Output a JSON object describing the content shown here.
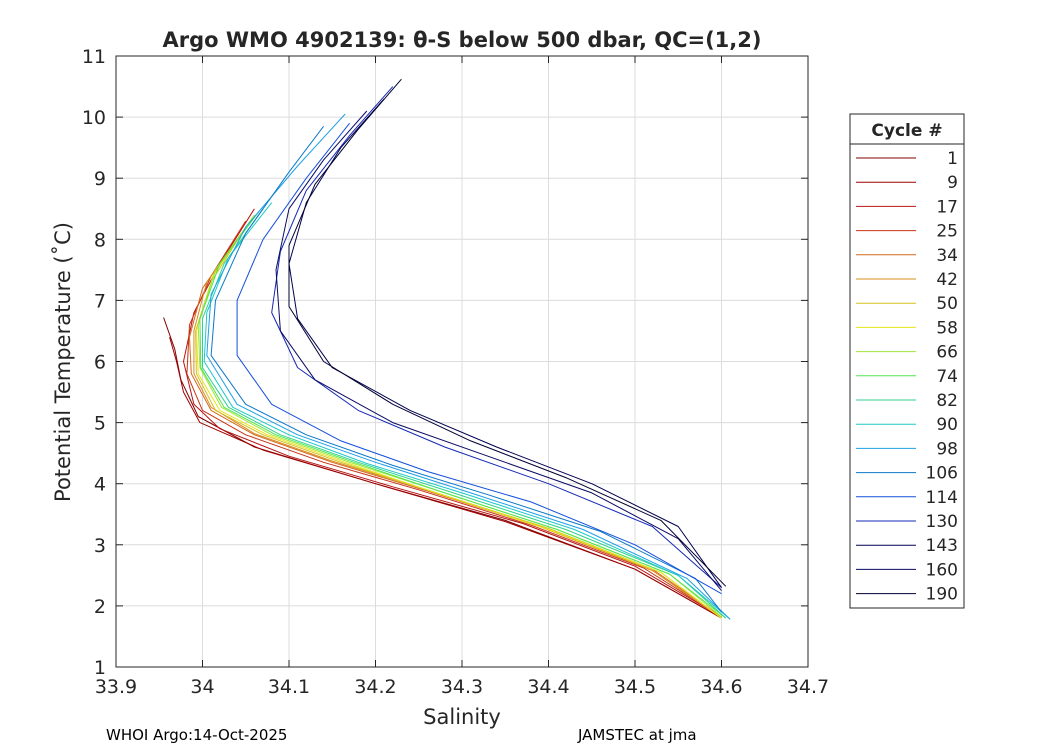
{
  "chart_data": {
    "type": "line",
    "title": "Argo WMO 4902139: θ-S below 500 dbar,  QC=(1,2)",
    "xlabel": "Salinity",
    "ylabel": "Potential Temperature (˚C)",
    "xlim": [
      33.9,
      34.7
    ],
    "ylim": [
      1,
      11
    ],
    "xticks": [
      "33.9",
      "34",
      "34.1",
      "34.2",
      "34.3",
      "34.4",
      "34.5",
      "34.6",
      "34.7"
    ],
    "yticks": [
      "1",
      "2",
      "3",
      "4",
      "5",
      "6",
      "7",
      "8",
      "9",
      "10",
      "11"
    ],
    "grid": true,
    "legend_title": "Cycle #",
    "legend_position": "outside-right",
    "series": [
      {
        "name": "1",
        "color": "#800000",
        "points": [
          [
            33.955,
            6.72
          ],
          [
            33.968,
            6.2
          ],
          [
            33.975,
            5.7
          ],
          [
            33.995,
            5.1
          ],
          [
            34.06,
            4.6
          ],
          [
            34.2,
            4.0
          ],
          [
            34.35,
            3.4
          ],
          [
            34.5,
            2.6
          ],
          [
            34.6,
            1.8
          ]
        ]
      },
      {
        "name": "9",
        "color": "#a00000",
        "points": [
          [
            33.962,
            6.4
          ],
          [
            33.97,
            6.0
          ],
          [
            33.978,
            5.5
          ],
          [
            33.997,
            5.0
          ],
          [
            34.07,
            4.55
          ],
          [
            34.2,
            4.0
          ],
          [
            34.35,
            3.38
          ],
          [
            34.5,
            2.6
          ],
          [
            34.6,
            1.8
          ]
        ]
      },
      {
        "name": "17",
        "color": "#b81414",
        "points": [
          [
            34.06,
            8.5
          ],
          [
            34.02,
            7.6
          ],
          [
            33.99,
            6.8
          ],
          [
            33.978,
            6.0
          ],
          [
            33.99,
            5.3
          ],
          [
            34.02,
            4.9
          ],
          [
            34.1,
            4.45
          ],
          [
            34.22,
            3.95
          ],
          [
            34.37,
            3.35
          ],
          [
            34.5,
            2.65
          ],
          [
            34.6,
            1.82
          ]
        ]
      },
      {
        "name": "25",
        "color": "#c83214",
        "points": [
          [
            34.05,
            8.3
          ],
          [
            34.01,
            7.4
          ],
          [
            33.985,
            6.6
          ],
          [
            33.982,
            5.8
          ],
          [
            34.0,
            5.2
          ],
          [
            34.05,
            4.8
          ],
          [
            34.14,
            4.35
          ],
          [
            34.25,
            3.9
          ],
          [
            34.38,
            3.32
          ],
          [
            34.51,
            2.62
          ],
          [
            34.6,
            1.82
          ]
        ]
      },
      {
        "name": "34",
        "color": "#d2691e",
        "points": [
          [
            34.04,
            8.0
          ],
          [
            34.0,
            7.2
          ],
          [
            33.985,
            6.4
          ],
          [
            33.987,
            5.8
          ],
          [
            34.01,
            5.2
          ],
          [
            34.06,
            4.8
          ],
          [
            34.15,
            4.35
          ],
          [
            34.26,
            3.88
          ],
          [
            34.39,
            3.3
          ],
          [
            34.52,
            2.6
          ],
          [
            34.6,
            1.82
          ]
        ]
      },
      {
        "name": "42",
        "color": "#d98c1a",
        "points": [
          [
            34.045,
            8.1
          ],
          [
            34.005,
            7.3
          ],
          [
            33.99,
            6.5
          ],
          [
            33.99,
            5.8
          ],
          [
            34.01,
            5.25
          ],
          [
            34.06,
            4.82
          ],
          [
            34.15,
            4.37
          ],
          [
            34.26,
            3.9
          ],
          [
            34.39,
            3.3
          ],
          [
            34.52,
            2.58
          ],
          [
            34.6,
            1.8
          ]
        ]
      },
      {
        "name": "50",
        "color": "#d4c21e",
        "points": [
          [
            34.05,
            8.2
          ],
          [
            34.01,
            7.3
          ],
          [
            33.992,
            6.5
          ],
          [
            33.993,
            5.8
          ],
          [
            34.015,
            5.2
          ],
          [
            34.07,
            4.8
          ],
          [
            34.16,
            4.35
          ],
          [
            34.27,
            3.85
          ],
          [
            34.4,
            3.27
          ],
          [
            34.53,
            2.55
          ],
          [
            34.6,
            1.8
          ]
        ]
      },
      {
        "name": "58",
        "color": "#e6e61e",
        "points": [
          [
            34.055,
            8.3
          ],
          [
            34.012,
            7.4
          ],
          [
            33.993,
            6.5
          ],
          [
            33.995,
            5.8
          ],
          [
            34.02,
            5.2
          ],
          [
            34.075,
            4.8
          ],
          [
            34.165,
            4.35
          ],
          [
            34.27,
            3.85
          ],
          [
            34.4,
            3.25
          ],
          [
            34.53,
            2.55
          ],
          [
            34.6,
            1.8
          ]
        ]
      },
      {
        "name": "66",
        "color": "#a0e632",
        "points": [
          [
            34.06,
            8.4
          ],
          [
            34.015,
            7.5
          ],
          [
            33.995,
            6.6
          ],
          [
            33.997,
            5.9
          ],
          [
            34.022,
            5.25
          ],
          [
            34.08,
            4.8
          ],
          [
            34.17,
            4.35
          ],
          [
            34.28,
            3.85
          ],
          [
            34.41,
            3.25
          ],
          [
            34.54,
            2.52
          ],
          [
            34.6,
            1.82
          ]
        ]
      },
      {
        "name": "74",
        "color": "#50e650",
        "points": [
          [
            34.065,
            8.45
          ],
          [
            34.02,
            7.6
          ],
          [
            33.997,
            6.7
          ],
          [
            33.998,
            5.9
          ],
          [
            34.025,
            5.25
          ],
          [
            34.085,
            4.8
          ],
          [
            34.175,
            4.35
          ],
          [
            34.28,
            3.85
          ],
          [
            34.41,
            3.25
          ],
          [
            34.54,
            2.52
          ],
          [
            34.605,
            1.8
          ]
        ]
      },
      {
        "name": "82",
        "color": "#32d28c",
        "points": [
          [
            34.07,
            8.5
          ],
          [
            34.025,
            7.6
          ],
          [
            34.0,
            6.7
          ],
          [
            34.0,
            5.9
          ],
          [
            34.03,
            5.25
          ],
          [
            34.09,
            4.8
          ],
          [
            34.18,
            4.35
          ],
          [
            34.29,
            3.85
          ],
          [
            34.42,
            3.25
          ],
          [
            34.55,
            2.5
          ],
          [
            34.605,
            1.8
          ]
        ]
      },
      {
        "name": "90",
        "color": "#1ec8c8",
        "points": [
          [
            34.08,
            8.6
          ],
          [
            34.03,
            7.7
          ],
          [
            34.005,
            6.8
          ],
          [
            34.002,
            6.0
          ],
          [
            34.035,
            5.25
          ],
          [
            34.1,
            4.8
          ],
          [
            34.19,
            4.33
          ],
          [
            34.3,
            3.85
          ],
          [
            34.43,
            3.25
          ],
          [
            34.55,
            2.5
          ],
          [
            34.61,
            1.78
          ]
        ]
      },
      {
        "name": "98",
        "color": "#1ea0e6",
        "points": [
          [
            34.165,
            10.05
          ],
          [
            34.11,
            9.2
          ],
          [
            34.05,
            8.2
          ],
          [
            34.01,
            7.1
          ],
          [
            34.005,
            6.1
          ],
          [
            34.04,
            5.3
          ],
          [
            34.11,
            4.8
          ],
          [
            34.2,
            4.35
          ],
          [
            34.31,
            3.85
          ],
          [
            34.44,
            3.25
          ],
          [
            34.56,
            2.45
          ],
          [
            34.61,
            1.78
          ]
        ]
      },
      {
        "name": "106",
        "color": "#0a78c8",
        "points": [
          [
            34.14,
            9.85
          ],
          [
            34.1,
            9.1
          ],
          [
            34.05,
            8.1
          ],
          [
            34.015,
            7.0
          ],
          [
            34.01,
            6.1
          ],
          [
            34.05,
            5.3
          ],
          [
            34.12,
            4.8
          ],
          [
            34.22,
            4.3
          ],
          [
            34.33,
            3.82
          ],
          [
            34.46,
            3.22
          ],
          [
            34.57,
            2.45
          ],
          [
            34.6,
            1.9
          ]
        ]
      },
      {
        "name": "114",
        "color": "#1450dc",
        "points": [
          [
            34.17,
            9.9
          ],
          [
            34.12,
            9.0
          ],
          [
            34.07,
            8.0
          ],
          [
            34.04,
            7.0
          ],
          [
            34.04,
            6.1
          ],
          [
            34.08,
            5.3
          ],
          [
            34.16,
            4.7
          ],
          [
            34.26,
            4.2
          ],
          [
            34.38,
            3.7
          ],
          [
            34.5,
            3.0
          ],
          [
            34.6,
            2.2
          ]
        ]
      },
      {
        "name": "130",
        "color": "#1428b4",
        "points": [
          [
            34.22,
            10.5
          ],
          [
            34.17,
            9.7
          ],
          [
            34.12,
            8.8
          ],
          [
            34.09,
            7.8
          ],
          [
            34.08,
            6.8
          ],
          [
            34.11,
            5.9
          ],
          [
            34.18,
            5.2
          ],
          [
            34.28,
            4.6
          ],
          [
            34.4,
            4.0
          ],
          [
            34.52,
            3.3
          ],
          [
            34.6,
            2.3
          ]
        ]
      },
      {
        "name": "143",
        "color": "#000050",
        "points": [
          [
            34.21,
            10.3
          ],
          [
            34.16,
            9.5
          ],
          [
            34.12,
            8.6
          ],
          [
            34.1,
            7.6
          ],
          [
            34.11,
            6.7
          ],
          [
            34.15,
            5.9
          ],
          [
            34.24,
            5.2
          ],
          [
            34.34,
            4.6
          ],
          [
            34.45,
            4.0
          ],
          [
            34.55,
            3.3
          ],
          [
            34.6,
            2.3
          ]
        ]
      },
      {
        "name": "160",
        "color": "#0a0a64",
        "points": [
          [
            34.19,
            10.1
          ],
          [
            34.14,
            9.3
          ],
          [
            34.1,
            8.5
          ],
          [
            34.085,
            7.5
          ],
          [
            34.09,
            6.5
          ],
          [
            34.13,
            5.7
          ],
          [
            34.22,
            5.0
          ],
          [
            34.33,
            4.45
          ],
          [
            34.45,
            3.85
          ],
          [
            34.55,
            3.1
          ],
          [
            34.6,
            2.25
          ]
        ]
      },
      {
        "name": "190",
        "color": "#000032",
        "points": [
          [
            34.23,
            10.62
          ],
          [
            34.18,
            9.8
          ],
          [
            34.13,
            8.9
          ],
          [
            34.1,
            7.9
          ],
          [
            34.1,
            6.9
          ],
          [
            34.14,
            6.0
          ],
          [
            34.22,
            5.3
          ],
          [
            34.31,
            4.7
          ],
          [
            34.42,
            4.1
          ],
          [
            34.53,
            3.4
          ],
          [
            34.605,
            2.32
          ]
        ]
      }
    ]
  },
  "footer": {
    "left": "WHOI Argo:14-Oct-2025",
    "right": "JAMSTEC at jma"
  }
}
